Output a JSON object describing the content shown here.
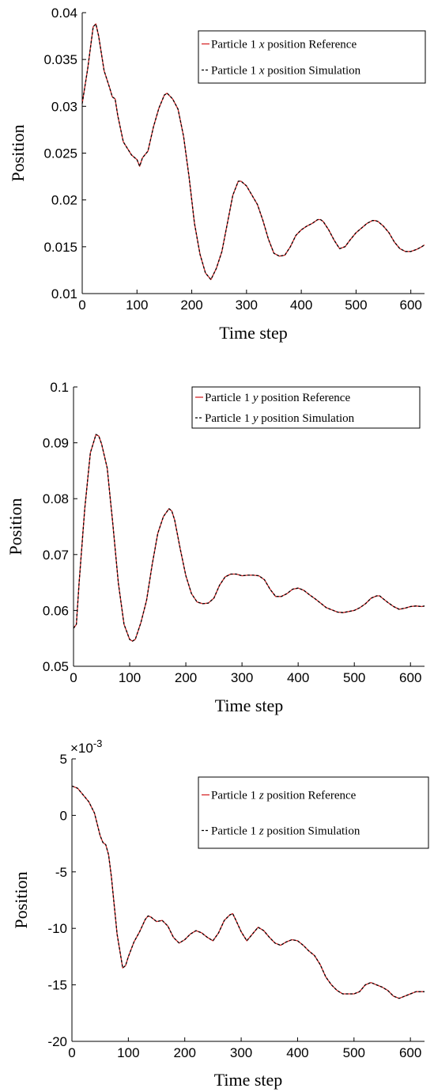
{
  "chart_data": [
    {
      "type": "line",
      "title": "",
      "xlabel": "Time step",
      "ylabel": "Position",
      "xlim": [
        0,
        625
      ],
      "ylim": [
        0.01,
        0.04
      ],
      "xticks": [
        "0",
        "100",
        "200",
        "300",
        "400",
        "500",
        "600"
      ],
      "yticks": [
        "0.01",
        "0.015",
        "0.02",
        "0.025",
        "0.03",
        "0.035",
        "0.04"
      ],
      "legend_position": "top-right",
      "legend": [
        {
          "pre": "Particle 1 ",
          "var": "x",
          "post": " position Reference"
        },
        {
          "pre": "Particle 1 ",
          "var": "x",
          "post": " position Simulation"
        }
      ],
      "series": [
        {
          "name": "Particle 1 x position Reference",
          "color": "#d62728",
          "style": "solid"
        },
        {
          "name": "Particle 1 x position Simulation",
          "color": "#000000",
          "style": "dashed"
        }
      ],
      "x": [
        0,
        10,
        20,
        25,
        30,
        40,
        50,
        55,
        60,
        65,
        75,
        90,
        100,
        105,
        110,
        120,
        130,
        140,
        150,
        155,
        165,
        175,
        185,
        195,
        205,
        215,
        225,
        235,
        245,
        255,
        265,
        275,
        285,
        290,
        300,
        310,
        320,
        330,
        340,
        350,
        360,
        370,
        380,
        390,
        400,
        410,
        420,
        430,
        435,
        440,
        450,
        460,
        470,
        480,
        490,
        500,
        510,
        520,
        530,
        535,
        540,
        550,
        560,
        570,
        580,
        590,
        600,
        610,
        620,
        625
      ],
      "y": [
        0.0303,
        0.034,
        0.0385,
        0.0388,
        0.0375,
        0.0338,
        0.032,
        0.031,
        0.0308,
        0.029,
        0.0262,
        0.0248,
        0.0243,
        0.0236,
        0.0245,
        0.0252,
        0.0278,
        0.0298,
        0.0312,
        0.0314,
        0.0308,
        0.0297,
        0.0268,
        0.0225,
        0.0175,
        0.0142,
        0.0122,
        0.0115,
        0.0127,
        0.0145,
        0.0175,
        0.0205,
        0.022,
        0.022,
        0.0215,
        0.0205,
        0.0195,
        0.0178,
        0.0158,
        0.0143,
        0.014,
        0.0141,
        0.015,
        0.0162,
        0.0168,
        0.0172,
        0.0175,
        0.0179,
        0.0179,
        0.0177,
        0.0168,
        0.0157,
        0.0148,
        0.015,
        0.0158,
        0.0165,
        0.017,
        0.0175,
        0.0178,
        0.0178,
        0.0177,
        0.0172,
        0.0165,
        0.0155,
        0.0148,
        0.0145,
        0.0145,
        0.0147,
        0.015,
        0.0152
      ]
    },
    {
      "type": "line",
      "title": "",
      "xlabel": "Time step",
      "ylabel": "Position",
      "xlim": [
        0,
        625
      ],
      "ylim": [
        0.05,
        0.1
      ],
      "xticks": [
        "0",
        "100",
        "200",
        "300",
        "400",
        "500",
        "600"
      ],
      "yticks": [
        "0.05",
        "0.06",
        "0.07",
        "0.08",
        "0.09",
        "0.1"
      ],
      "legend_position": "top-right",
      "legend": [
        {
          "pre": "Particle 1 ",
          "var": "y",
          "post": " position Reference"
        },
        {
          "pre": "Particle 1 ",
          "var": "y",
          "post": " position Simulation"
        }
      ],
      "series": [
        {
          "name": "Particle 1 y position Reference",
          "color": "#d62728",
          "style": "solid"
        },
        {
          "name": "Particle 1 y position Simulation",
          "color": "#000000",
          "style": "dashed"
        }
      ],
      "x": [
        0,
        5,
        10,
        20,
        30,
        40,
        45,
        50,
        60,
        70,
        80,
        90,
        100,
        105,
        110,
        120,
        130,
        140,
        150,
        160,
        170,
        175,
        180,
        190,
        200,
        210,
        220,
        230,
        240,
        250,
        260,
        270,
        280,
        290,
        300,
        310,
        320,
        330,
        340,
        350,
        360,
        370,
        380,
        390,
        400,
        410,
        420,
        430,
        440,
        450,
        460,
        470,
        480,
        490,
        500,
        510,
        520,
        530,
        540,
        545,
        550,
        560,
        570,
        580,
        590,
        600,
        610,
        620,
        625
      ],
      "y": [
        0.0568,
        0.0575,
        0.065,
        0.0782,
        0.0882,
        0.0915,
        0.0912,
        0.0898,
        0.0855,
        0.0755,
        0.0648,
        0.0575,
        0.0548,
        0.0545,
        0.0548,
        0.0578,
        0.0618,
        0.0682,
        0.0738,
        0.0768,
        0.0782,
        0.0778,
        0.0762,
        0.071,
        0.0662,
        0.063,
        0.0615,
        0.0612,
        0.0613,
        0.0622,
        0.0645,
        0.066,
        0.0665,
        0.0665,
        0.0662,
        0.0663,
        0.0663,
        0.0662,
        0.0655,
        0.0638,
        0.0625,
        0.0625,
        0.063,
        0.0638,
        0.064,
        0.0636,
        0.0628,
        0.0621,
        0.0613,
        0.0605,
        0.0601,
        0.0597,
        0.0596,
        0.0598,
        0.06,
        0.0605,
        0.0612,
        0.0622,
        0.0626,
        0.0626,
        0.0622,
        0.0614,
        0.0607,
        0.0602,
        0.0604,
        0.0607,
        0.0608,
        0.0607,
        0.0608
      ]
    },
    {
      "type": "line",
      "title": "",
      "xlabel": "Time step",
      "ylabel": "Position",
      "xlim": [
        0,
        625
      ],
      "ylim": [
        -0.02,
        0.005
      ],
      "xticks": [
        "0",
        "100",
        "200",
        "300",
        "400",
        "500",
        "600"
      ],
      "yticks": [
        "-20",
        "-15",
        "-10",
        "-5",
        "0",
        "5"
      ],
      "multiplier": {
        "base": "×10",
        "exp": "-3"
      },
      "legend_position": "top-right",
      "legend": [
        {
          "pre": "Particle 1 ",
          "var": "z",
          "post": " position Reference"
        },
        {
          "pre": "Particle 1 ",
          "var": "z",
          "post": " position Simulation"
        }
      ],
      "series": [
        {
          "name": "Particle 1 z position Reference",
          "color": "#d62728",
          "style": "solid"
        },
        {
          "name": "Particle 1 z position Simulation",
          "color": "#000000",
          "style": "dashed"
        }
      ],
      "x": [
        0,
        10,
        20,
        30,
        40,
        50,
        55,
        60,
        65,
        70,
        80,
        90,
        95,
        100,
        110,
        120,
        130,
        135,
        140,
        150,
        160,
        170,
        180,
        190,
        200,
        210,
        220,
        230,
        240,
        250,
        260,
        270,
        280,
        285,
        290,
        300,
        310,
        320,
        330,
        340,
        350,
        360,
        370,
        380,
        390,
        400,
        410,
        420,
        430,
        440,
        450,
        460,
        470,
        480,
        490,
        500,
        510,
        520,
        530,
        540,
        550,
        560,
        570,
        580,
        590,
        600,
        610,
        620,
        625
      ],
      "y": [
        0.0026,
        0.0024,
        0.0018,
        0.0012,
        0.0002,
        -0.0018,
        -0.0024,
        -0.0026,
        -0.0035,
        -0.0055,
        -0.0105,
        -0.0135,
        -0.0133,
        -0.0125,
        -0.0112,
        -0.0103,
        -0.0092,
        -0.0089,
        -0.009,
        -0.0094,
        -0.0093,
        -0.0098,
        -0.0108,
        -0.0113,
        -0.011,
        -0.0105,
        -0.0102,
        -0.0104,
        -0.0108,
        -0.0111,
        -0.0104,
        -0.0093,
        -0.0088,
        -0.0087,
        -0.0092,
        -0.0103,
        -0.0111,
        -0.0105,
        -0.0099,
        -0.0102,
        -0.0108,
        -0.0113,
        -0.0115,
        -0.0112,
        -0.011,
        -0.0111,
        -0.0115,
        -0.012,
        -0.0124,
        -0.0132,
        -0.0143,
        -0.015,
        -0.0155,
        -0.0158,
        -0.0158,
        -0.0158,
        -0.0156,
        -0.015,
        -0.0148,
        -0.015,
        -0.0152,
        -0.0155,
        -0.016,
        -0.0162,
        -0.016,
        -0.0158,
        -0.0156,
        -0.0156,
        -0.0156
      ]
    }
  ]
}
